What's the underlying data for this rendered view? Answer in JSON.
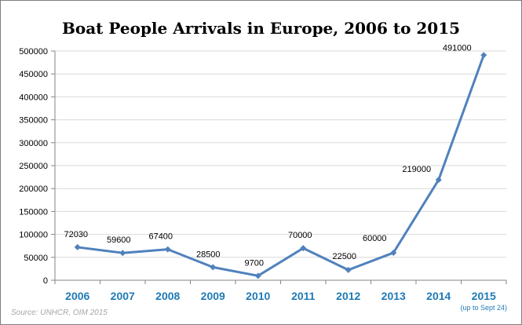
{
  "chart_data": {
    "type": "line",
    "title": "Boat People Arrivals in Europe, 2006 to 2015",
    "categories": [
      "2006",
      "2007",
      "2008",
      "2009",
      "2010",
      "2011",
      "2012",
      "2013",
      "2014",
      "2015"
    ],
    "series": [
      {
        "values": [
          72030,
          59600,
          67400,
          28500,
          9700,
          70000,
          22500,
          60000,
          219000,
          491000
        ]
      }
    ],
    "data_labels": [
      "72030",
      "59600",
      "67400",
      "28500",
      "9700",
      "70000",
      "22500",
      "60000",
      "219000",
      "491000"
    ],
    "yticks": [
      "0",
      "50000",
      "100000",
      "150000",
      "200000",
      "250000",
      "300000",
      "350000",
      "400000",
      "450000",
      "500000"
    ],
    "ylim": [
      0,
      500000
    ],
    "x_note": "(up to Sept 24)",
    "grid": "horizontal",
    "legend": "none",
    "colors": {
      "line": "#4f81bd",
      "x_tick": "#1f7ab5",
      "grid": "#d9d9d9",
      "axis": "#868686"
    }
  },
  "source": "Source: UNHCR, OIM 2015"
}
